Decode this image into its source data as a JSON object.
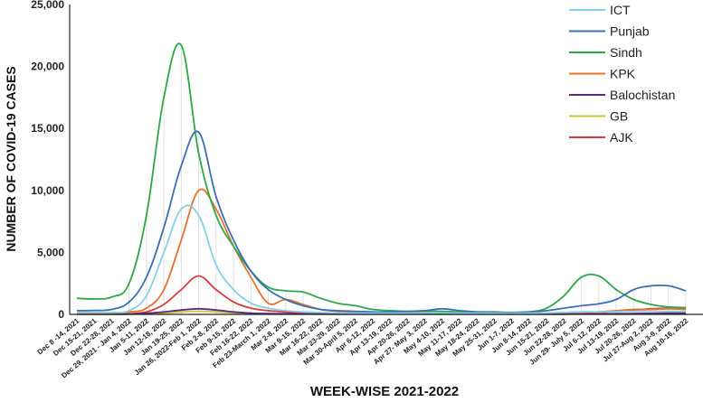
{
  "chart_data": {
    "type": "line",
    "title": "",
    "xlabel": "WEEK-WISE 2021-2022",
    "ylabel": "NUMBER OF COVID-19 CASES",
    "ylim": [
      0,
      25000
    ],
    "yticks": [
      "0",
      "5,000",
      "10,000",
      "15,000",
      "20,000",
      "25,000"
    ],
    "grid": false,
    "legend_position": "top-right",
    "categories": [
      "Dec 8 -14, 2021",
      "Dec 15-21, 2021",
      "Dec 22-28, 2021",
      "Dec 29, 2021 - Jan 4, 2022",
      "Jan 5-11, 2022",
      "Jan 12-18, 2022",
      "Jan 19-25, 2022",
      "Jan 26, 2022-Feb 1, 2022",
      "Feb 2-8, 2022",
      "Feb 9-15, 2022",
      "Feb 16-22, 2022",
      "Feb 23-March 1, 2022",
      "Mar 2-8, 2022",
      "Mar 9-15, 2022",
      "Mar 16-22, 2022",
      "Mar 23-29, 2022",
      "Mar 30-April 5, 2022",
      "Apr 6-12, 2022",
      "Apr 13-19, 2022",
      "Apr 20-26, 2022",
      "Apr 27- May 3, 2022",
      "May 4-10, 2022",
      "May 11-17, 2022",
      "May 18-24, 2022",
      "May 25-31, 2022",
      "Jun 1-7, 2022",
      "Jun 8-14, 2022",
      "Jun 15-21, 2022",
      "Jun 22-28, 2022",
      "Jun 29- July 5, 2022",
      "Jul 6-12, 2022",
      "Jul 13-19, 2022",
      "Jul 20-26, 2022",
      "Jul 27-Aug 2, 2022",
      "Aug 3-9, 2022",
      "Aug 10-16, 2022"
    ],
    "series": [
      {
        "name": "ICT",
        "color": "#87ceeb",
        "values": [
          150,
          150,
          160,
          300,
          1500,
          5000,
          8500,
          8000,
          4000,
          2000,
          900,
          500,
          300,
          200,
          150,
          120,
          100,
          100,
          100,
          100,
          120,
          120,
          100,
          100,
          100,
          100,
          100,
          120,
          150,
          200,
          200,
          220,
          250,
          250,
          250,
          250
        ]
      },
      {
        "name": "Punjab",
        "color": "#3a6fb5",
        "values": [
          300,
          320,
          400,
          1000,
          3000,
          7000,
          12000,
          14700,
          9500,
          6000,
          3500,
          2000,
          1200,
          700,
          400,
          300,
          250,
          200,
          200,
          250,
          300,
          450,
          300,
          200,
          150,
          150,
          200,
          300,
          500,
          700,
          850,
          1200,
          2000,
          2300,
          2300,
          1900
        ]
      },
      {
        "name": "Sindh",
        "color": "#2ca84a",
        "values": [
          1300,
          1250,
          1400,
          2500,
          8000,
          17500,
          21700,
          13000,
          8000,
          5500,
          3500,
          2200,
          1900,
          1800,
          1300,
          900,
          700,
          400,
          300,
          250,
          250,
          250,
          200,
          200,
          200,
          150,
          200,
          500,
          1500,
          3000,
          3100,
          2000,
          1200,
          800,
          600,
          550
        ]
      },
      {
        "name": "KPK",
        "color": "#e8722c",
        "values": [
          100,
          100,
          120,
          200,
          500,
          2000,
          6000,
          10000,
          8500,
          5500,
          3000,
          900,
          1200,
          800,
          400,
          250,
          200,
          150,
          120,
          120,
          120,
          120,
          100,
          100,
          100,
          100,
          100,
          120,
          150,
          200,
          200,
          300,
          400,
          400,
          450,
          400
        ]
      },
      {
        "name": "Balochistan",
        "color": "#5a2a82",
        "values": [
          20,
          20,
          20,
          30,
          80,
          200,
          350,
          450,
          350,
          200,
          100,
          60,
          50,
          40,
          30,
          20,
          20,
          20,
          20,
          20,
          20,
          20,
          20,
          20,
          20,
          20,
          20,
          20,
          20,
          30,
          40,
          50,
          60,
          80,
          100,
          100
        ]
      },
      {
        "name": "GB",
        "color": "#c8c832",
        "values": [
          10,
          10,
          10,
          20,
          50,
          100,
          200,
          250,
          200,
          120,
          80,
          50,
          40,
          30,
          20,
          20,
          20,
          20,
          20,
          20,
          20,
          20,
          20,
          20,
          20,
          20,
          20,
          20,
          20,
          30,
          40,
          50,
          60,
          80,
          100,
          100
        ]
      },
      {
        "name": "AJK",
        "color": "#d93a3a",
        "values": [
          20,
          20,
          30,
          50,
          200,
          800,
          2000,
          3100,
          2000,
          1000,
          500,
          300,
          200,
          150,
          100,
          80,
          60,
          50,
          50,
          50,
          50,
          50,
          50,
          50,
          50,
          50,
          50,
          60,
          80,
          100,
          150,
          250,
          350,
          450,
          500,
          500
        ]
      }
    ]
  }
}
